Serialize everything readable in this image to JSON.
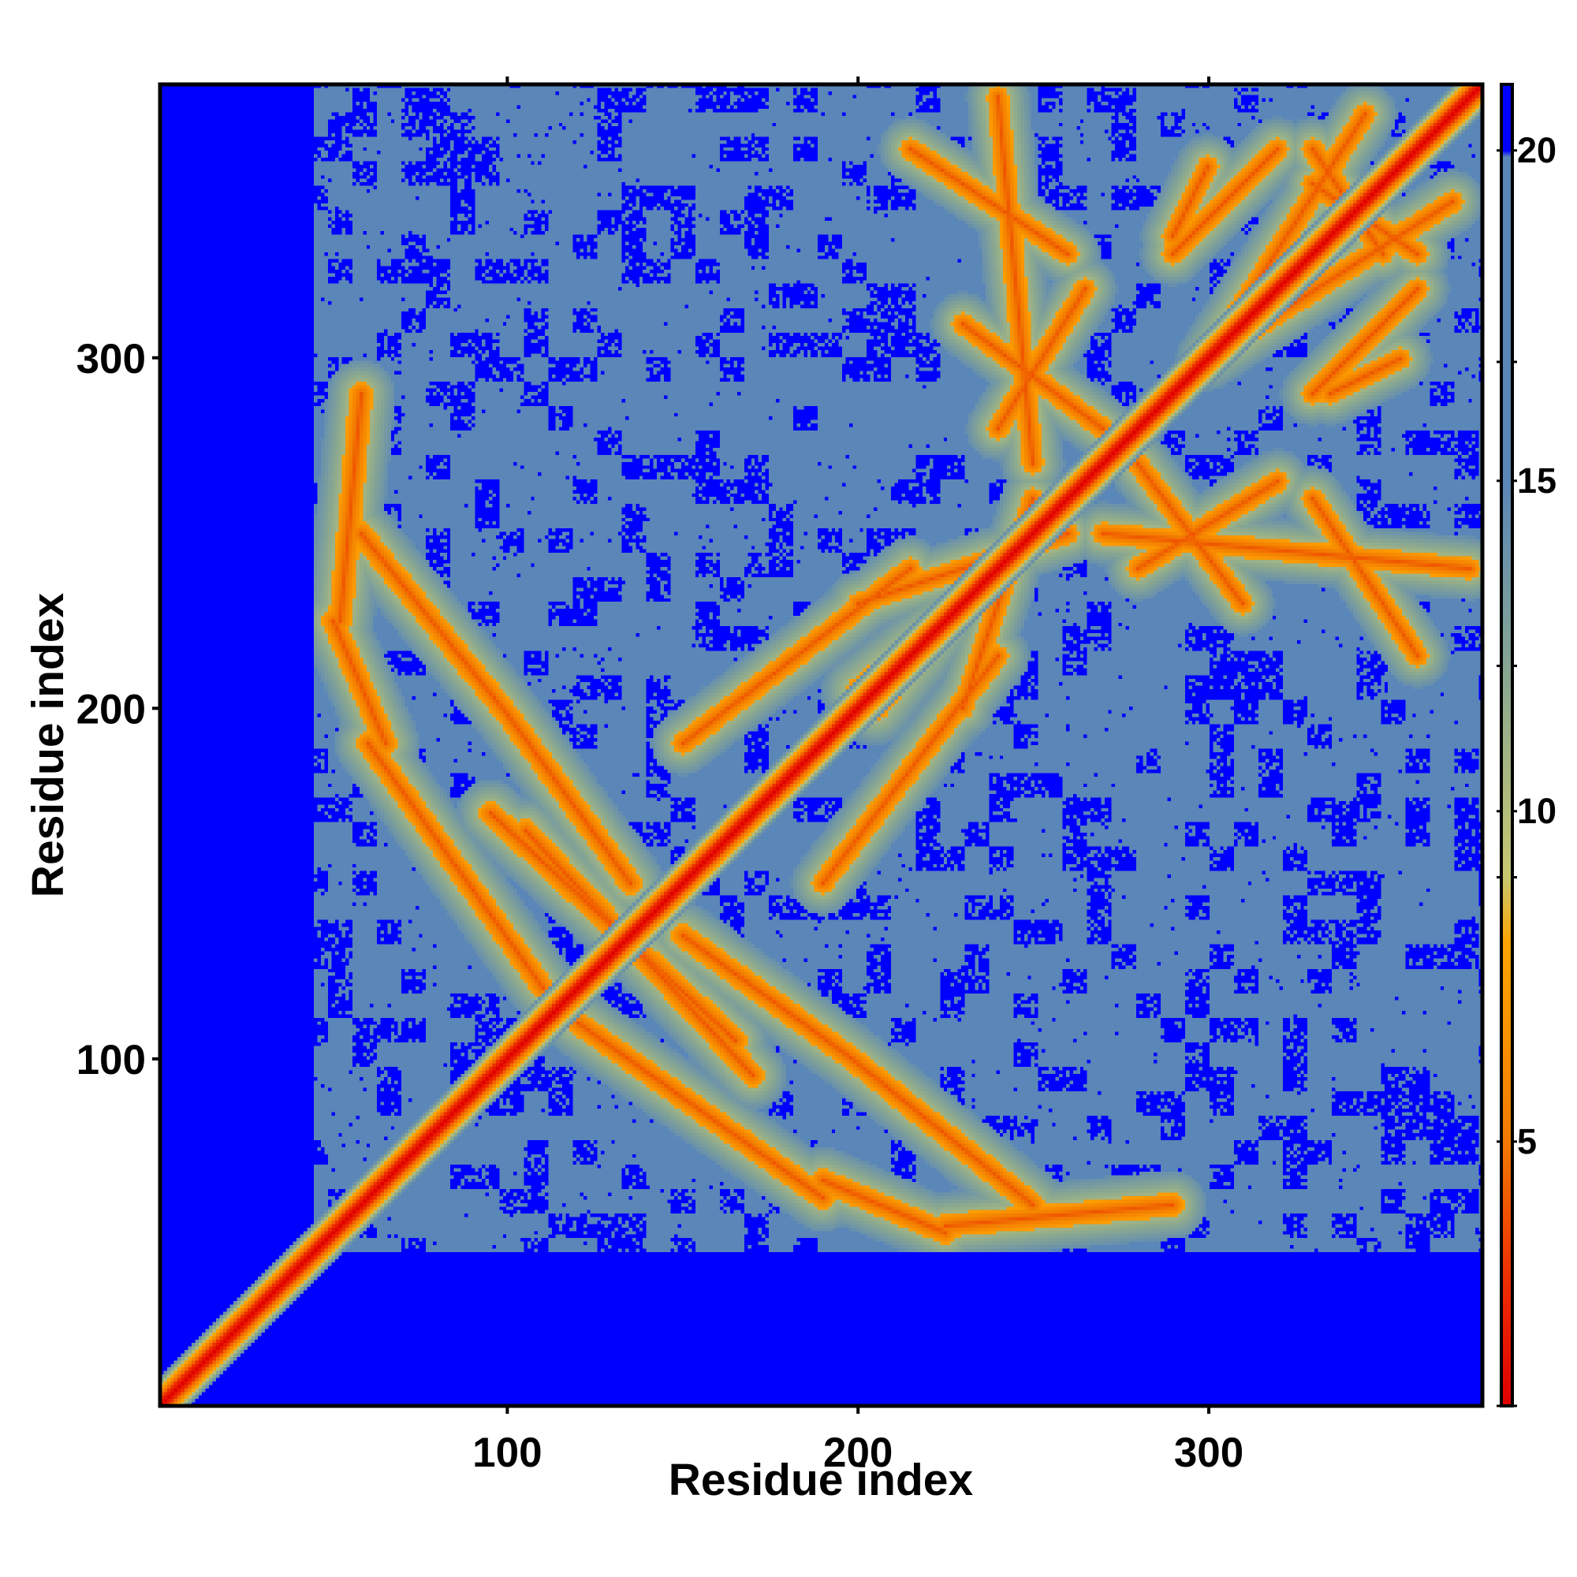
{
  "chart_data": {
    "type": "heatmap",
    "description_of_values": "pairwise residue distance map (symmetric matrix)",
    "xlabel": "Residue index",
    "ylabel": "Residue index",
    "xlim": [
      1,
      378
    ],
    "ylim": [
      1,
      378
    ],
    "x_ticks": [
      100,
      200,
      300
    ],
    "y_ticks": [
      100,
      200,
      300
    ],
    "colorbar": {
      "ticks": [
        5,
        10,
        15,
        20
      ],
      "range": [
        1,
        21
      ],
      "stops": [
        {
          "value": 1,
          "color": "#e00000"
        },
        {
          "value": 3,
          "color": "#ee3000"
        },
        {
          "value": 5,
          "color": "#f27a00"
        },
        {
          "value": 8,
          "color": "#ffa500"
        },
        {
          "value": 9,
          "color": "#c8c870"
        },
        {
          "value": 12,
          "color": "#8aa890"
        },
        {
          "value": 15,
          "color": "#5a86b8"
        },
        {
          "value": 19.9,
          "color": "#5a86b8"
        },
        {
          "value": 20,
          "color": "#0000ff"
        },
        {
          "value": 21,
          "color": "#0000ff"
        }
      ]
    },
    "colors": {
      "diagonal": "#e00000",
      "contact": "#ffa500",
      "near": "#c8c870",
      "background_mid": "#5a86b8",
      "far": "#0000ff"
    },
    "grid": false,
    "legend": "colorbar-right"
  }
}
